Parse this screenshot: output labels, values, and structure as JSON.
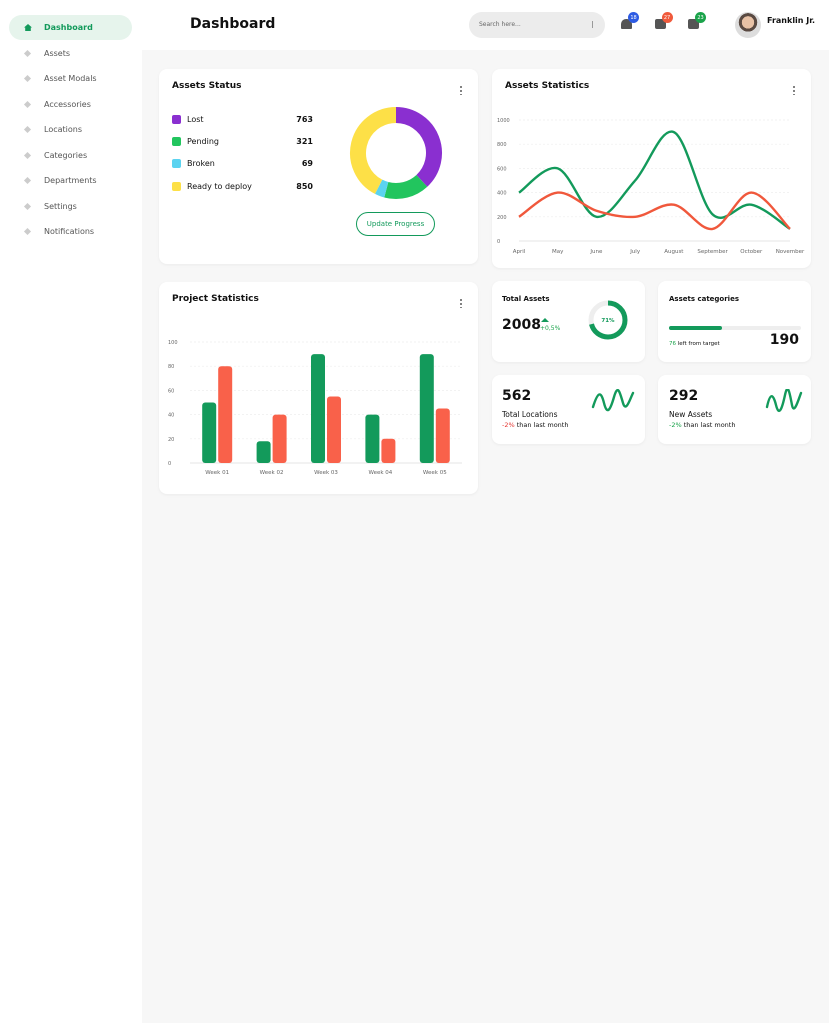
{
  "sidebar": {
    "items": [
      "Dashboard",
      "Assets",
      "Asset Modals",
      "Accessories",
      "Locations",
      "Categories",
      "Departments",
      "Settings",
      "Notifications"
    ],
    "active": 0
  },
  "header": {
    "title": "Dashboard",
    "search_placeholder": "Search here...",
    "badges": [
      {
        "count": "18",
        "color": "#2d5be3"
      },
      {
        "count": "27",
        "color": "#f05a3c"
      },
      {
        "count": "23",
        "color": "#1aa34a"
      }
    ],
    "user": "Franklin Jr."
  },
  "assets_status": {
    "title": "Assets Status",
    "items": [
      {
        "name": "Lost",
        "value": 763,
        "color": "#8a2fd0"
      },
      {
        "name": "Pending",
        "value": 321,
        "color": "#22c55e"
      },
      {
        "name": "Broken",
        "value": 69,
        "color": "#5bd3f0"
      },
      {
        "name": "Ready to deploy",
        "value": 850,
        "color": "#fde047"
      }
    ],
    "button": "Update Progress"
  },
  "assets_statistics": {
    "type": "line",
    "title": "Assets Statistics",
    "categories": [
      "April",
      "May",
      "June",
      "July",
      "August",
      "September",
      "October",
      "November"
    ],
    "series": [
      {
        "color": "#139a5b",
        "values": [
          400,
          600,
          200,
          500,
          900,
          220,
          300,
          100
        ]
      },
      {
        "color": "#f0583c",
        "values": [
          200,
          400,
          250,
          200,
          300,
          100,
          400,
          100
        ]
      }
    ],
    "ylim": [
      0,
      1000
    ],
    "yticks": [
      0,
      200,
      400,
      600,
      800,
      1000
    ],
    "grid": true
  },
  "project_statistics": {
    "type": "bar",
    "title": "Project Statistics",
    "categories": [
      "Week 01",
      "Week 02",
      "Week 03",
      "Week 04",
      "Week 05"
    ],
    "series": [
      {
        "color": "#139a5b",
        "values": [
          50,
          18,
          90,
          40,
          90
        ]
      },
      {
        "color": "#f9614a",
        "values": [
          80,
          40,
          55,
          20,
          45
        ]
      }
    ],
    "ylim": [
      0,
      100
    ],
    "yticks": [
      0,
      20,
      40,
      60,
      80,
      100
    ],
    "grid": true
  },
  "total_assets": {
    "title": "Total Assets",
    "value": "2008",
    "change": "+0,5%",
    "progress": {
      "value": 71,
      "label": "71%"
    }
  },
  "assets_categories": {
    "title": "Assets categories",
    "value": "190",
    "remaining": "76",
    "note": "left from target"
  },
  "total_locations": {
    "value": "562",
    "label": "Total Locations",
    "change": "-2%",
    "note": "than last month"
  },
  "new_assets": {
    "value": "292",
    "label": "New Assets",
    "change": "-2%",
    "note": "than last month"
  }
}
